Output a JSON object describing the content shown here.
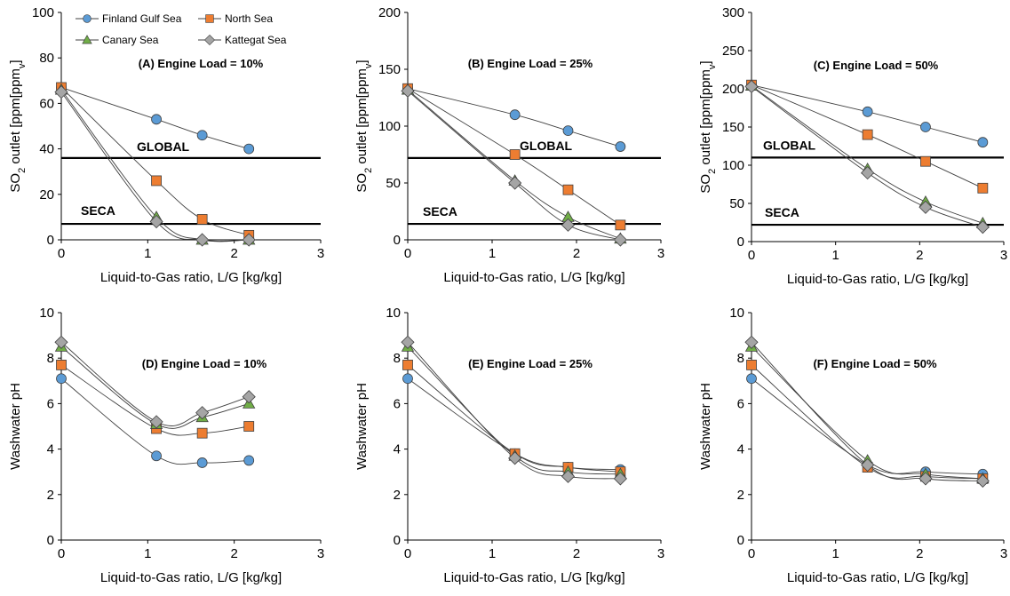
{
  "legend": {
    "items": [
      {
        "name": "Finland Gulf Sea",
        "marker": "circle",
        "color": "#5B9BD5"
      },
      {
        "name": "North Sea",
        "marker": "square",
        "color": "#ED7D31"
      },
      {
        "name": "Canary Sea",
        "marker": "triangle",
        "color": "#70AD47"
      },
      {
        "name": "Kattegat Sea",
        "marker": "diamond",
        "color": "#A5A5A5"
      }
    ]
  },
  "chart_data": [
    {
      "type": "line",
      "title": "(A) Engine Load = 10%",
      "xlabel": "Liquid-to-Gas ratio, L/G [kg/kg]",
      "ylabel": "SO2 outlet [ppmv]",
      "xlim": [
        0,
        3
      ],
      "ylim": [
        0,
        100
      ],
      "xticks": [
        "0",
        "1",
        "2",
        "3"
      ],
      "yticks": [
        "0",
        "20",
        "40",
        "60",
        "80",
        "100"
      ],
      "x": [
        0,
        1.1,
        1.63,
        2.17
      ],
      "series": [
        {
          "name": "Finland Gulf Sea",
          "values": [
            67,
            53,
            46,
            40
          ]
        },
        {
          "name": "North Sea",
          "values": [
            67,
            26,
            9,
            2
          ]
        },
        {
          "name": "Canary Sea",
          "values": [
            66,
            10,
            0,
            0
          ]
        },
        {
          "name": "Kattegat Sea",
          "values": [
            65,
            8,
            0,
            0
          ]
        }
      ],
      "reference_lines": [
        {
          "label": "GLOBAL",
          "value": 36
        },
        {
          "label": "SECA",
          "value": 7
        }
      ]
    },
    {
      "type": "line",
      "title": "(B) Engine Load = 25%",
      "xlabel": "Liquid-to-Gas ratio, L/G [kg/kg]",
      "ylabel": "SO2 outlet [ppmv]",
      "xlim": [
        0,
        3
      ],
      "ylim": [
        0,
        200
      ],
      "xticks": [
        "0",
        "1",
        "2",
        "3"
      ],
      "yticks": [
        "0",
        "50",
        "100",
        "150",
        "200"
      ],
      "x": [
        0,
        1.27,
        1.9,
        2.52
      ],
      "series": [
        {
          "name": "Finland Gulf Sea",
          "values": [
            133,
            110,
            96,
            82
          ]
        },
        {
          "name": "North Sea",
          "values": [
            133,
            75,
            44,
            13
          ]
        },
        {
          "name": "Canary Sea",
          "values": [
            132,
            52,
            20,
            1
          ]
        },
        {
          "name": "Kattegat Sea",
          "values": [
            131,
            50,
            13,
            0
          ]
        }
      ],
      "reference_lines": [
        {
          "label": "GLOBAL",
          "value": 72
        },
        {
          "label": "SECA",
          "value": 14
        }
      ]
    },
    {
      "type": "line",
      "title": "(C) Engine Load = 50%",
      "xlabel": "Liquid-to-Gas ratio, L/G [kg/kg]",
      "ylabel": "SO2 outlet [ppmv]",
      "xlim": [
        0,
        3
      ],
      "ylim": [
        0,
        300
      ],
      "xticks": [
        "0",
        "1",
        "2",
        "3"
      ],
      "yticks": [
        "0",
        "50",
        "100",
        "150",
        "200",
        "250",
        "300"
      ],
      "x": [
        0,
        1.38,
        2.07,
        2.75
      ],
      "series": [
        {
          "name": "Finland Gulf Sea",
          "values": [
            205,
            170,
            150,
            130
          ]
        },
        {
          "name": "North Sea",
          "values": [
            205,
            140,
            105,
            70
          ]
        },
        {
          "name": "Canary Sea",
          "values": [
            204,
            95,
            52,
            24
          ]
        },
        {
          "name": "Kattegat Sea",
          "values": [
            203,
            90,
            45,
            19
          ]
        }
      ],
      "reference_lines": [
        {
          "label": "GLOBAL",
          "value": 110
        },
        {
          "label": "SECA",
          "value": 22
        }
      ]
    },
    {
      "type": "line",
      "title": "(D) Engine Load = 10%",
      "xlabel": "Liquid-to-Gas ratio, L/G [kg/kg]",
      "ylabel": "Washwater pH",
      "xlim": [
        0,
        3
      ],
      "ylim": [
        0,
        10
      ],
      "xticks": [
        "0",
        "1",
        "2",
        "3"
      ],
      "yticks": [
        "0",
        "2",
        "4",
        "6",
        "8",
        "10"
      ],
      "x": [
        0,
        1.1,
        1.63,
        2.17
      ],
      "series": [
        {
          "name": "Finland Gulf Sea",
          "values": [
            7.1,
            3.7,
            3.4,
            3.5
          ]
        },
        {
          "name": "North Sea",
          "values": [
            7.7,
            4.9,
            4.7,
            5.0
          ]
        },
        {
          "name": "Canary Sea",
          "values": [
            8.5,
            5.1,
            5.4,
            6.0
          ]
        },
        {
          "name": "Kattegat Sea",
          "values": [
            8.7,
            5.2,
            5.6,
            6.3
          ]
        }
      ]
    },
    {
      "type": "line",
      "title": "(E) Engine Load = 25%",
      "xlabel": "Liquid-to-Gas ratio, L/G [kg/kg]",
      "ylabel": "Washwater pH",
      "xlim": [
        0,
        3
      ],
      "ylim": [
        0,
        10
      ],
      "xticks": [
        "0",
        "1",
        "2",
        "3"
      ],
      "yticks": [
        "0",
        "2",
        "4",
        "6",
        "8",
        "10"
      ],
      "x": [
        0,
        1.27,
        1.9,
        2.52
      ],
      "series": [
        {
          "name": "Finland Gulf Sea",
          "values": [
            7.1,
            3.8,
            3.2,
            3.1
          ]
        },
        {
          "name": "North Sea",
          "values": [
            7.7,
            3.8,
            3.2,
            3.0
          ]
        },
        {
          "name": "Canary Sea",
          "values": [
            8.5,
            3.7,
            3.0,
            2.9
          ]
        },
        {
          "name": "Kattegat Sea",
          "values": [
            8.7,
            3.6,
            2.8,
            2.7
          ]
        }
      ]
    },
    {
      "type": "line",
      "title": "(F) Engine Load = 50%",
      "xlabel": "Liquid-to-Gas ratio, L/G [kg/kg]",
      "ylabel": "Washwater pH",
      "xlim": [
        0,
        3
      ],
      "ylim": [
        0,
        10
      ],
      "xticks": [
        "0",
        "1",
        "2",
        "3"
      ],
      "yticks": [
        "0",
        "2",
        "4",
        "6",
        "8",
        "10"
      ],
      "x": [
        0,
        1.38,
        2.07,
        2.75
      ],
      "series": [
        {
          "name": "Finland Gulf Sea",
          "values": [
            7.1,
            3.3,
            3.0,
            2.9
          ]
        },
        {
          "name": "North Sea",
          "values": [
            7.7,
            3.2,
            2.8,
            2.7
          ]
        },
        {
          "name": "Canary Sea",
          "values": [
            8.5,
            3.5,
            2.9,
            2.7
          ]
        },
        {
          "name": "Kattegat Sea",
          "values": [
            8.7,
            3.3,
            2.7,
            2.6
          ]
        }
      ]
    }
  ]
}
